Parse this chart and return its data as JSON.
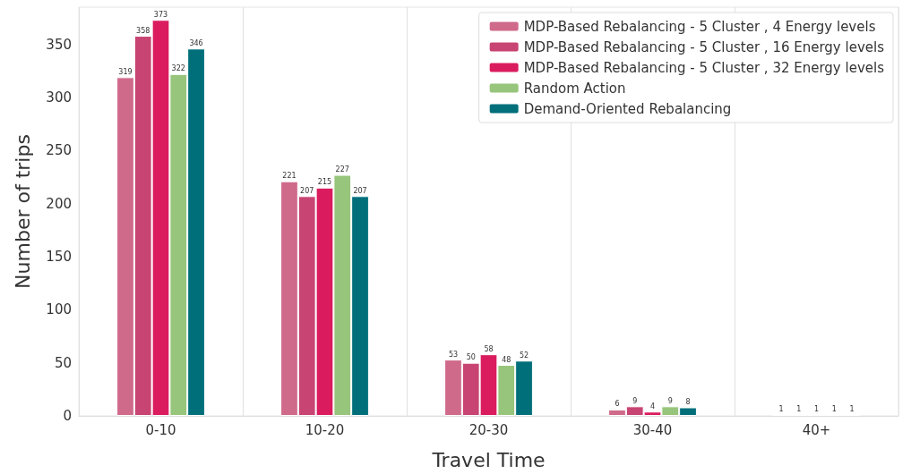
{
  "chart_data": {
    "type": "bar",
    "xlabel": "Travel Time",
    "ylabel": "Number of trips",
    "categories": [
      "0-10",
      "10-20",
      "20-30",
      "30-40",
      "40+"
    ],
    "series": [
      {
        "name": "MDP-Based Rebalancing - 5 Cluster , 4 Energy levels",
        "color": "#cf6a8b",
        "values": [
          319,
          221,
          53,
          6,
          1
        ]
      },
      {
        "name": "MDP-Based Rebalancing - 5 Cluster , 16 Energy levels",
        "color": "#c84472",
        "values": [
          358,
          207,
          50,
          9,
          1
        ]
      },
      {
        "name": "MDP-Based Rebalancing - 5 Cluster , 32 Energy levels",
        "color": "#da1c5e",
        "values": [
          373,
          215,
          58,
          4,
          1
        ]
      },
      {
        "name": "Random Action",
        "color": "#97c57b",
        "values": [
          322,
          227,
          48,
          9,
          1
        ]
      },
      {
        "name": "Demand-Oriented Rebalancing",
        "color": "#006f7a",
        "values": [
          346,
          207,
          52,
          8,
          1
        ]
      }
    ],
    "ylim": [
      0,
      385
    ],
    "yticks": [
      0,
      50,
      100,
      150,
      200,
      250,
      300,
      350
    ],
    "grid": "x",
    "legend": "top right",
    "data_labels": true
  }
}
